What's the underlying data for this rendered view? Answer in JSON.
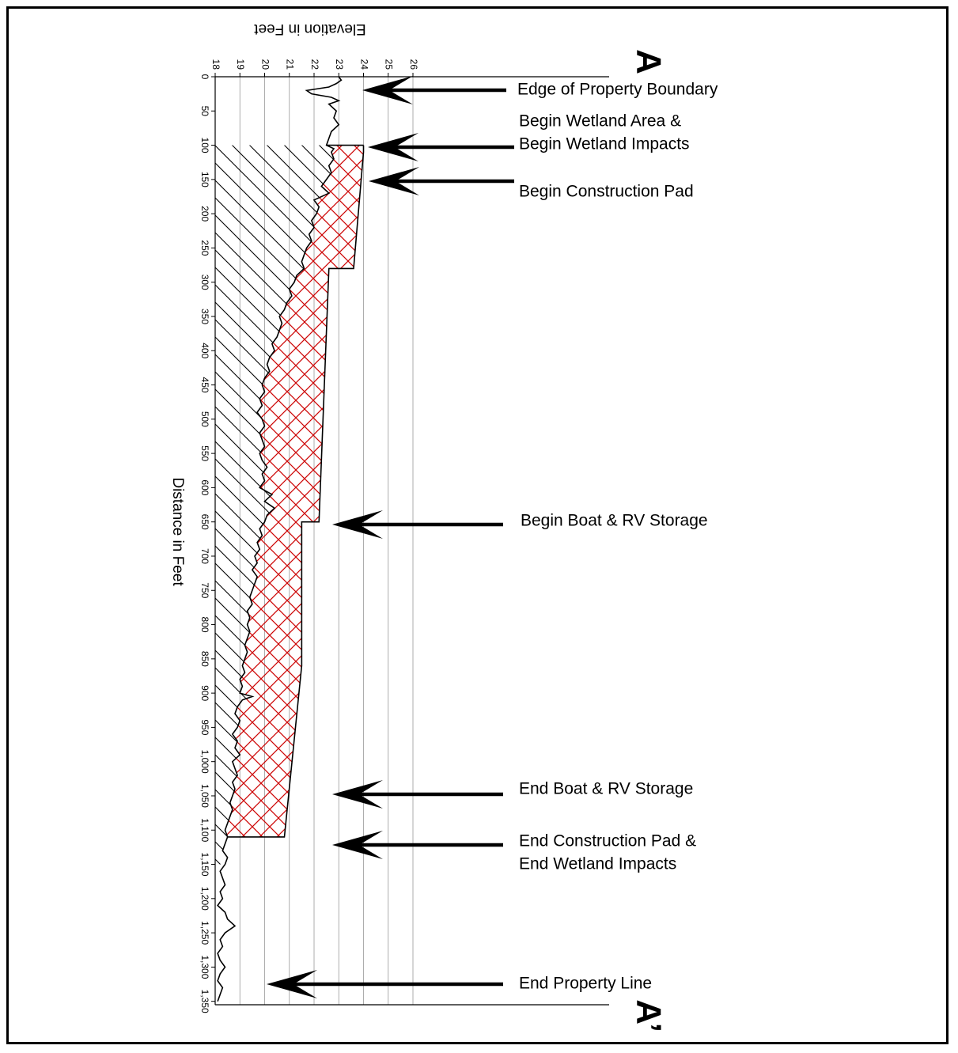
{
  "chart_data": {
    "type": "area",
    "orientation": "x-axis runs top-to-bottom, elevation increases to the right; page rotated",
    "markers": {
      "start": "A",
      "end": "A’"
    },
    "xlabel": "Distance in Feet",
    "ylabel": "Elevation in Feet",
    "x_ticks": [
      "0",
      "50",
      "100",
      "150",
      "200",
      "250",
      "300",
      "350",
      "400",
      "450",
      "500",
      "550",
      "600",
      "650",
      "700",
      "750",
      "800",
      "850",
      "900",
      "950",
      "1,000",
      "1,050",
      "1,100",
      "1,150",
      "1,200",
      "1,250",
      "1,300",
      "1,350"
    ],
    "y_ticks": [
      "18",
      "19",
      "20",
      "21",
      "22",
      "23",
      "24",
      "25",
      "26"
    ],
    "xlim": [
      0,
      1355
    ],
    "ylim": [
      18,
      26
    ],
    "grid": "vertical lines at each elevation tick",
    "colors": {
      "line": "#000000",
      "fill_hatch": "#cc0000",
      "grid": "#999999"
    },
    "series": [
      {
        "name": "",
        "x": [
          0,
          5,
          10,
          15,
          20,
          25,
          30,
          35,
          40,
          50,
          60,
          70,
          80,
          90,
          100,
          105,
          110,
          120,
          130,
          140,
          150,
          160,
          170,
          180,
          190,
          200,
          210,
          220,
          230,
          240,
          250,
          260,
          270,
          280,
          290,
          300,
          310,
          320,
          330,
          340,
          350,
          360,
          370,
          380,
          390,
          400,
          410,
          420,
          430,
          440,
          450,
          460,
          470,
          480,
          490,
          500,
          510,
          520,
          530,
          540,
          550,
          560,
          570,
          580,
          590,
          600,
          610,
          620,
          630,
          640,
          650,
          660,
          670,
          680,
          690,
          700,
          710,
          720,
          730,
          740,
          750,
          760,
          770,
          780,
          790,
          800,
          810,
          820,
          830,
          840,
          850,
          860,
          870,
          880,
          890,
          900,
          905,
          910,
          920,
          930,
          940,
          950,
          960,
          970,
          980,
          990,
          1000,
          1010,
          1020,
          1030,
          1040,
          1050,
          1060,
          1070,
          1080,
          1090,
          1100,
          1110,
          1120,
          1130,
          1140,
          1150,
          1160,
          1170,
          1180,
          1190,
          1200,
          1210,
          1220,
          1230,
          1240,
          1250,
          1260,
          1270,
          1280,
          1290,
          1300,
          1310,
          1320,
          1330,
          1340,
          1350
        ],
        "y": [
          23.0,
          23.1,
          22.9,
          22.6,
          21.7,
          21.9,
          22.7,
          23.0,
          22.6,
          22.9,
          22.8,
          23.0,
          22.7,
          22.6,
          22.5,
          22.8,
          22.7,
          22.8,
          22.6,
          22.7,
          22.5,
          22.3,
          22.6,
          22.0,
          22.2,
          22.1,
          21.9,
          22.0,
          21.8,
          21.9,
          21.7,
          21.6,
          21.5,
          21.6,
          21.3,
          21.2,
          21.0,
          21.1,
          20.9,
          20.8,
          20.6,
          20.7,
          20.6,
          20.5,
          20.3,
          20.4,
          20.2,
          20.1,
          20.2,
          20.0,
          19.9,
          20.0,
          19.8,
          19.9,
          19.7,
          19.9,
          20.0,
          19.8,
          19.9,
          20.0,
          19.8,
          19.9,
          20.1,
          19.9,
          20.0,
          19.8,
          20.3,
          20.0,
          20.4,
          20.1,
          20.0,
          19.8,
          19.9,
          19.7,
          19.8,
          19.6,
          19.7,
          19.5,
          19.7,
          19.6,
          19.5,
          19.4,
          19.5,
          19.3,
          19.4,
          19.3,
          19.4,
          19.3,
          19.2,
          19.3,
          19.2,
          19.1,
          19.2,
          19.0,
          19.1,
          19.0,
          19.5,
          19.1,
          18.9,
          18.8,
          19.0,
          18.9,
          18.7,
          18.9,
          18.8,
          19.0,
          18.7,
          18.8,
          18.9,
          18.7,
          18.8,
          18.7,
          18.6,
          18.7,
          18.6,
          18.5,
          18.4,
          18.5,
          18.4,
          18.3,
          18.5,
          18.4,
          18.2,
          18.3,
          18.4,
          18.2,
          18.3,
          18.1,
          18.4,
          18.5,
          18.8,
          18.4,
          18.2,
          18.3,
          18.1,
          18.2,
          18.4,
          18.2,
          18.1,
          18.3,
          18.2,
          18.1
        ]
      },
      {
        "name": "",
        "style": "red crosshatch (fill between ground and pad)",
        "x": [
          100,
          110,
          280,
          280,
          650,
          650,
          860,
          1110,
          1110
        ],
        "y": [
          24.0,
          24.0,
          23.6,
          22.6,
          22.2,
          21.5,
          21.5,
          20.8,
          20.0
        ]
      }
    ],
    "annotations": [
      {
        "text": "Edge of Property Boundary",
        "x": 20
      },
      {
        "text": "Begin Wetland Area &",
        "x": null
      },
      {
        "text": "Begin Wetland Impacts",
        "x": 100
      },
      {
        "text": "Begin Construction Pad",
        "x": 150
      },
      {
        "text": "Begin Boat & RV Storage",
        "x": 650
      },
      {
        "text": "End Boat & RV Storage",
        "x": 1050
      },
      {
        "text": "End Construction Pad &",
        "x": null
      },
      {
        "text": "End Wetland Impacts",
        "x": 1120
      },
      {
        "text": "End Property Line",
        "x": 1350
      }
    ]
  }
}
